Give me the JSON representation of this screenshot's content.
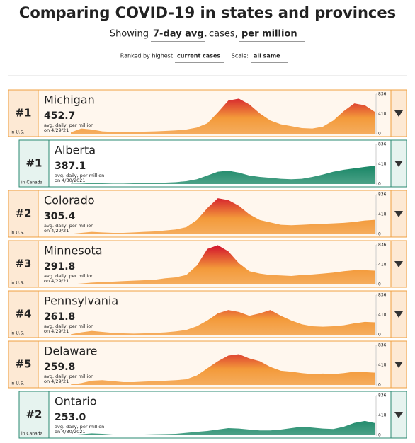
{
  "header": {
    "title": "Comparing COVID-19 in states and provinces",
    "showing": "Showing",
    "measure": "7-day avg.",
    "cases": "cases,",
    "per": "per million",
    "ranked_by": "Ranked by highest",
    "ranked_value": "current cases",
    "scale_label": "Scale:",
    "scale_value": "all same"
  },
  "rows": [
    {
      "rank": "#1",
      "name": "Michigan",
      "value": "452.7",
      "unit": "avg. daily, per million",
      "date": "on 4/29/21",
      "region": "in U.S.",
      "country": "us"
    },
    {
      "rank": "#1",
      "name": "Alberta",
      "value": "387.1",
      "unit": "avg. daily, per million",
      "date": "on 4/30/2021",
      "region": "in Canada",
      "country": "ca"
    },
    {
      "rank": "#2",
      "name": "Colorado",
      "value": "305.4",
      "unit": "avg. daily, per million",
      "date": "on 4/29/21",
      "region": "in U.S.",
      "country": "us"
    },
    {
      "rank": "#3",
      "name": "Minnesota",
      "value": "291.8",
      "unit": "avg. daily, per million",
      "date": "on 4/29/21",
      "region": "in U.S.",
      "country": "us"
    },
    {
      "rank": "#4",
      "name": "Pennsylvania",
      "value": "261.8",
      "unit": "avg. daily, per million",
      "date": "on 4/29/21",
      "region": "in U.S.",
      "country": "us"
    },
    {
      "rank": "#5",
      "name": "Delaware",
      "value": "259.8",
      "unit": "avg. daily, per million",
      "date": "on 4/29/21",
      "region": "in U.S.",
      "country": "us"
    },
    {
      "rank": "#2",
      "name": "Ontario",
      "value": "253.0",
      "unit": "avg. daily, per million",
      "date": "on 4/30/2021",
      "region": "in Canada",
      "country": "ca"
    }
  ],
  "chart_data": [
    {
      "type": "area",
      "color": "#f39a3a",
      "peak_color": "#d1102c",
      "ylim": [
        0,
        836
      ],
      "yticks": [
        0,
        418,
        836
      ],
      "values": [
        30,
        110,
        90,
        50,
        40,
        35,
        40,
        45,
        50,
        60,
        70,
        90,
        130,
        220,
        450,
        700,
        740,
        620,
        430,
        280,
        200,
        160,
        120,
        110,
        150,
        280,
        480,
        640,
        600,
        453
      ]
    },
    {
      "type": "area",
      "color": "#1f8a6a",
      "peak_color": "#0f5e47",
      "ylim": [
        0,
        836
      ],
      "yticks": [
        0,
        418,
        836
      ],
      "values": [
        5,
        10,
        20,
        15,
        10,
        10,
        15,
        20,
        25,
        30,
        40,
        60,
        100,
        180,
        260,
        280,
        240,
        180,
        150,
        130,
        110,
        100,
        110,
        150,
        200,
        260,
        300,
        330,
        360,
        387
      ]
    },
    {
      "type": "area",
      "color": "#f39a3a",
      "peak_color": "#d1102c",
      "ylim": [
        0,
        836
      ],
      "yticks": [
        0,
        418,
        836
      ],
      "values": [
        10,
        30,
        50,
        40,
        30,
        30,
        40,
        50,
        60,
        80,
        100,
        150,
        300,
        550,
        760,
        720,
        600,
        420,
        300,
        250,
        200,
        190,
        200,
        210,
        220,
        230,
        240,
        260,
        290,
        305
      ]
    },
    {
      "type": "area",
      "color": "#f39a3a",
      "peak_color": "#d1102c",
      "ylim": [
        0,
        836
      ],
      "yticks": [
        0,
        418,
        836
      ],
      "values": [
        5,
        20,
        40,
        50,
        60,
        70,
        80,
        90,
        100,
        130,
        150,
        200,
        400,
        750,
        830,
        700,
        450,
        280,
        230,
        200,
        190,
        180,
        200,
        210,
        230,
        250,
        280,
        300,
        300,
        292
      ]
    },
    {
      "type": "area",
      "color": "#f39a3a",
      "peak_color": "#d1102c",
      "ylim": [
        0,
        836
      ],
      "yticks": [
        0,
        418,
        836
      ],
      "values": [
        10,
        50,
        80,
        60,
        40,
        30,
        25,
        30,
        40,
        50,
        70,
        100,
        180,
        300,
        450,
        520,
        480,
        400,
        450,
        520,
        400,
        300,
        220,
        180,
        170,
        180,
        200,
        240,
        270,
        262
      ]
    },
    {
      "type": "area",
      "color": "#f39a3a",
      "peak_color": "#d1102c",
      "ylim": [
        0,
        836
      ],
      "yticks": [
        0,
        418,
        836
      ],
      "values": [
        10,
        40,
        90,
        100,
        80,
        60,
        60,
        70,
        80,
        90,
        100,
        120,
        200,
        350,
        500,
        620,
        650,
        560,
        500,
        380,
        300,
        280,
        250,
        230,
        240,
        230,
        250,
        280,
        270,
        260
      ]
    },
    {
      "type": "area",
      "color": "#1f8a6a",
      "peak_color": "#0f5e47",
      "ylim": [
        0,
        836
      ],
      "yticks": [
        0,
        418,
        836
      ],
      "values": [
        5,
        20,
        40,
        30,
        15,
        10,
        10,
        15,
        20,
        25,
        30,
        50,
        70,
        90,
        120,
        150,
        140,
        120,
        100,
        100,
        120,
        150,
        180,
        160,
        140,
        130,
        180,
        260,
        300,
        253
      ]
    }
  ]
}
